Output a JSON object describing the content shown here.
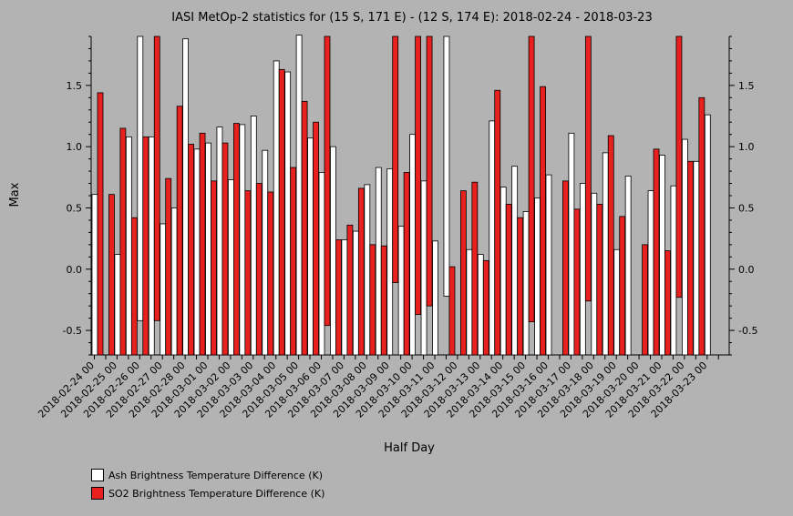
{
  "chart_data": {
    "type": "bar",
    "title": "IASI MetOp-2 statistics for (15 S, 171 E) - (12 S, 174 E): 2018-02-24 - 2018-03-23",
    "xlabel": "Half Day",
    "ylabel": "Max",
    "ylim": [
      -0.7,
      1.9
    ],
    "yticks": [
      -0.5,
      0.0,
      0.5,
      1.0,
      1.5
    ],
    "ytick_labels": [
      "-0.5",
      "0.0",
      "0.5",
      "1.0",
      "1.5"
    ],
    "legend_position": "bottom-left",
    "categories": [
      "2018-02-24 00",
      "2018-02-24 12",
      "2018-02-25 00",
      "2018-02-25 12",
      "2018-02-26 00",
      "2018-02-26 12",
      "2018-02-27 00",
      "2018-02-27 12",
      "2018-02-28 00",
      "2018-02-28 12",
      "2018-03-01 00",
      "2018-03-01 12",
      "2018-03-02 00",
      "2018-03-02 12",
      "2018-03-03 00",
      "2018-03-03 12",
      "2018-03-04 00",
      "2018-03-04 12",
      "2018-03-05 00",
      "2018-03-05 12",
      "2018-03-06 00",
      "2018-03-06 12",
      "2018-03-07 00",
      "2018-03-07 12",
      "2018-03-08 00",
      "2018-03-08 12",
      "2018-03-09 00",
      "2018-03-09 12",
      "2018-03-10 00",
      "2018-03-10 12",
      "2018-03-11 00",
      "2018-03-11 12",
      "2018-03-12 00",
      "2018-03-12 12",
      "2018-03-13 00",
      "2018-03-13 12",
      "2018-03-14 00",
      "2018-03-14 12",
      "2018-03-15 00",
      "2018-03-15 12",
      "2018-03-16 00",
      "2018-03-16 12",
      "2018-03-17 00",
      "2018-03-17 12",
      "2018-03-18 00",
      "2018-03-18 12",
      "2018-03-19 00",
      "2018-03-19 12",
      "2018-03-20 00",
      "2018-03-20 12",
      "2018-03-21 00",
      "2018-03-21 12",
      "2018-03-22 00",
      "2018-03-22 12",
      "2018-03-23 00",
      "2018-03-23 12"
    ],
    "x_tick_labels": [
      "2018-02-24 00",
      "2018-02-25 00",
      "2018-02-26 00",
      "2018-02-27 00",
      "2018-02-28 00",
      "2018-03-01 00",
      "2018-03-02 00",
      "2018-03-03 00",
      "2018-03-04 00",
      "2018-03-05 00",
      "2018-03-06 00",
      "2018-03-07 00",
      "2018-03-08 00",
      "2018-03-09 00",
      "2018-03-10 00",
      "2018-03-11 00",
      "2018-03-12 00",
      "2018-03-13 00",
      "2018-03-14 00",
      "2018-03-15 00",
      "2018-03-16 00",
      "2018-03-17 00",
      "2018-03-18 00",
      "2018-03-19 00",
      "2018-03-20 00",
      "2018-03-21 00",
      "2018-03-22 00",
      "2018-03-23 00"
    ],
    "series": [
      {
        "name": "Ash Brightness Temperature Difference (K)",
        "color": "#ffffff",
        "values": [
          0.61,
          null,
          0.12,
          1.08,
          -0.42,
          1.08,
          0.37,
          0.5,
          1.88,
          0.98,
          1.03,
          1.16,
          0.73,
          1.18,
          1.25,
          0.97,
          1.7,
          1.61,
          1.91,
          1.07,
          0.79,
          1.0,
          0.24,
          0.31,
          0.69,
          0.83,
          0.82,
          0.35,
          1.1,
          0.72,
          0.23,
          -0.22,
          null,
          0.16,
          0.12,
          1.21,
          0.67,
          0.84,
          0.47,
          0.58,
          0.77,
          null,
          1.11,
          0.7,
          0.62,
          0.95,
          0.16,
          0.76,
          null,
          0.64,
          0.93,
          0.68,
          1.06,
          0.88,
          1.26,
          null
        ]
      },
      {
        "name": "SO2 Brightness Temperature Difference (K)",
        "color": "#e8201e",
        "values": [
          1.44,
          0.61,
          1.15,
          0.42,
          1.08,
          -0.42,
          0.74,
          1.33,
          1.02,
          1.11,
          0.72,
          1.03,
          1.19,
          0.64,
          0.7,
          0.63,
          1.63,
          0.83,
          1.37,
          1.2,
          -0.46,
          0.24,
          0.36,
          0.66,
          0.2,
          0.19,
          -0.11,
          0.79,
          -0.37,
          -0.3,
          null,
          0.02,
          0.64,
          0.71,
          0.07,
          1.46,
          0.53,
          0.42,
          -0.43,
          1.49,
          null,
          0.72,
          0.49,
          -0.26,
          0.53,
          1.09,
          0.43,
          null,
          0.2,
          0.98,
          0.15,
          -0.23,
          0.88,
          1.4,
          null,
          null
        ]
      }
    ]
  }
}
